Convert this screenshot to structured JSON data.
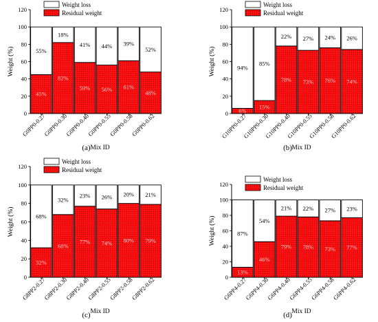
{
  "figure": {
    "colors": {
      "residual": "#ff1010",
      "loss": "#ffffff",
      "edge": "#000000",
      "loss_label": "#000000",
      "residual_label": "#ffc8c8"
    }
  },
  "chart_data": [
    {
      "type": "bar",
      "stacked": true,
      "panel_label": "(a)",
      "xlabel": "Mix ID",
      "ylabel": "Weight (%)",
      "ylim": [
        0,
        120
      ],
      "yticks": [
        0,
        20,
        40,
        60,
        80,
        100,
        120
      ],
      "legend": {
        "placement": "top-right",
        "entries": [
          "Weight loss",
          "Residual weight"
        ]
      },
      "categories": [
        "G0PP0-0.27",
        "G0PP0-0.30",
        "G0PP0-0.40",
        "G0PP0-0.55",
        "G0PP0-0.58",
        "G0PP0-0.62"
      ],
      "series": [
        {
          "name": "Residual weight",
          "values": [
            45,
            82,
            59,
            56,
            61,
            48
          ],
          "labels": [
            "45%",
            "82%",
            "59%",
            "56%",
            "61%",
            "48%"
          ]
        },
        {
          "name": "Weight loss",
          "values": [
            55,
            18,
            41,
            44,
            39,
            52
          ],
          "labels": [
            "55%",
            "18%",
            "41%",
            "44%",
            "39%",
            "52%"
          ]
        }
      ]
    },
    {
      "type": "bar",
      "stacked": true,
      "panel_label": "(b)",
      "xlabel": "Mix ID",
      "ylabel": "Weight (%)",
      "ylim": [
        0,
        120
      ],
      "yticks": [
        0,
        20,
        40,
        60,
        80,
        100,
        120
      ],
      "legend": {
        "placement": "top-right",
        "entries": [
          "Weight loss",
          "Residual weight"
        ]
      },
      "categories": [
        "G10PP0-0.27",
        "G10PP0-0.30",
        "G10PP0-0.40",
        "G10PP0-0.55",
        "G10PP0-0.58",
        "G10PP0-0.62"
      ],
      "series": [
        {
          "name": "Residual weight",
          "values": [
            6,
            15,
            78,
            73,
            76,
            74
          ],
          "labels": [
            "6%",
            "15%",
            "78%",
            "73%",
            "76%",
            "74%"
          ]
        },
        {
          "name": "Weight loss",
          "values": [
            94,
            85,
            22,
            27,
            24,
            26
          ],
          "labels": [
            "94%",
            "85%",
            "22%",
            "27%",
            "24%",
            "26%"
          ]
        }
      ]
    },
    {
      "type": "bar",
      "stacked": true,
      "panel_label": "(c)",
      "xlabel": "Mix ID",
      "ylabel": "Weight (%)",
      "ylim": [
        0,
        120
      ],
      "yticks": [
        0,
        20,
        40,
        60,
        80,
        100,
        120
      ],
      "legend": {
        "placement": "top-right",
        "entries": [
          "Weight loss",
          "Residual weight"
        ]
      },
      "categories": [
        "G8PP2-0.27",
        "G8PP2-0.30",
        "G8PP2-0.40",
        "G8PP2-0.55",
        "G8PP2-0.58",
        "G8PP2-0.62"
      ],
      "series": [
        {
          "name": "Residual weight",
          "values": [
            32,
            68,
            77,
            74,
            80,
            79
          ],
          "labels": [
            "32%",
            "68%",
            "77%",
            "74%",
            "80%",
            "79%"
          ]
        },
        {
          "name": "Weight loss",
          "values": [
            68,
            32,
            23,
            26,
            20,
            21
          ],
          "labels": [
            "68%",
            "32%",
            "23%",
            "26%",
            "20%",
            "21%"
          ]
        }
      ]
    },
    {
      "type": "bar",
      "stacked": true,
      "panel_label": "(d)",
      "xlabel": "Mix ID",
      "ylabel": "Weight (%)",
      "ylim": [
        0,
        120
      ],
      "yticks": [
        0,
        20,
        40,
        60,
        80,
        100,
        120
      ],
      "legend": {
        "placement": "top-right",
        "entries": [
          "Weight loss",
          "Residual weight"
        ]
      },
      "categories": [
        "G6PP4-0.27",
        "G6PP4-0.30",
        "G6PP4-0.40",
        "G6PP4-0.55",
        "G6PP4-0.58",
        "G6PP4-0.62"
      ],
      "series": [
        {
          "name": "Residual weight",
          "values": [
            13,
            46,
            79,
            78,
            73,
            77
          ],
          "labels": [
            "13%",
            "46%",
            "79%",
            "78%",
            "73%",
            "77%"
          ]
        },
        {
          "name": "Weight loss",
          "values": [
            87,
            54,
            21,
            22,
            27,
            23
          ],
          "labels": [
            "87%",
            "54%",
            "21%",
            "22%",
            "27%",
            "23%"
          ]
        }
      ]
    }
  ]
}
